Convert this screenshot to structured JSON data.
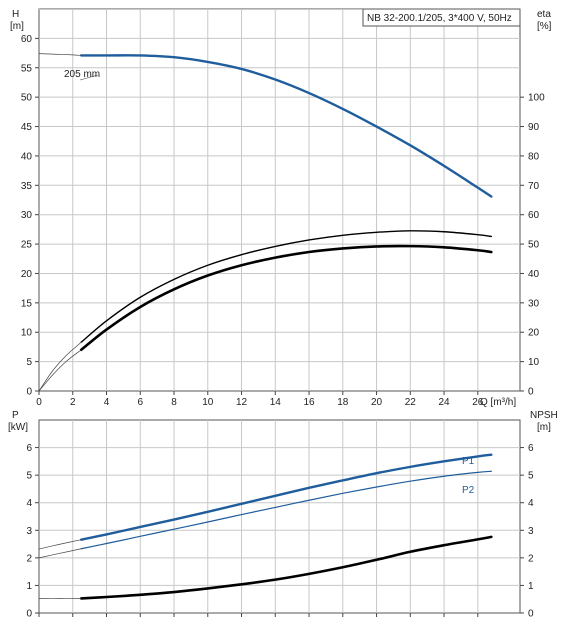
{
  "chart_data": [
    {
      "type": "line",
      "info_box": "NB 32-200.1/205, 3*400 V, 50Hz",
      "left_axis": {
        "unit_name": "H",
        "unit": "[m]",
        "ylim": [
          0,
          65
        ],
        "ticks": [
          0,
          5,
          10,
          15,
          20,
          25,
          30,
          35,
          40,
          45,
          50,
          55,
          60
        ]
      },
      "right_axis": {
        "unit_name": "eta",
        "unit": "[%]",
        "ylim": [
          0,
          130
        ],
        "ticks": [
          0,
          10,
          20,
          30,
          40,
          50,
          60,
          70,
          80,
          90,
          100
        ]
      },
      "x_axis": {
        "unit": "Q [m³/h]",
        "xlim": [
          0,
          28.5
        ],
        "ticks": [
          0,
          2,
          4,
          6,
          8,
          10,
          12,
          14,
          16,
          18,
          20,
          22,
          24,
          26
        ]
      },
      "grid": true,
      "series": [
        {
          "name": "205 mm",
          "axis": "left",
          "style": "blue-thick",
          "x": [
            2.5,
            4,
            6,
            8,
            10,
            12,
            14,
            16,
            18,
            20,
            22,
            24,
            26,
            26.8
          ],
          "y": [
            57.1,
            57.1,
            57.1,
            56.8,
            56.0,
            54.8,
            53.0,
            50.7,
            48.0,
            45.0,
            41.8,
            38.3,
            34.6,
            33.1
          ]
        },
        {
          "name": "",
          "axis": "left",
          "style": "thin-extension",
          "x": [
            0,
            1,
            2,
            2.5
          ],
          "y": [
            57.4,
            57.3,
            57.2,
            57.1
          ]
        },
        {
          "name": "",
          "axis": "right",
          "style": "black-thin",
          "x": [
            2.5,
            4,
            6,
            8,
            10,
            12,
            14,
            16,
            18,
            20,
            22,
            24,
            26,
            26.8
          ],
          "y": [
            16.6,
            23.9,
            31.9,
            38.0,
            42.8,
            46.4,
            49.2,
            51.4,
            53.0,
            54.0,
            54.5,
            54.2,
            53.2,
            52.6
          ]
        },
        {
          "name": "",
          "axis": "right",
          "style": "black-thick",
          "x": [
            2.5,
            4,
            6,
            8,
            10,
            12,
            14,
            16,
            18,
            20,
            22,
            24,
            26,
            26.8
          ],
          "y": [
            14.0,
            20.9,
            28.6,
            34.6,
            39.3,
            42.8,
            45.4,
            47.3,
            48.5,
            49.2,
            49.3,
            48.9,
            47.9,
            47.3
          ]
        },
        {
          "name": "",
          "axis": "right",
          "style": "thin-extension",
          "x": [
            0,
            0.8,
            1.6,
            2.5
          ],
          "y": [
            0,
            6.8,
            12.0,
            16.6
          ]
        },
        {
          "name": "",
          "axis": "right",
          "style": "thin-extension",
          "x": [
            0,
            0.8,
            1.6,
            2.5
          ],
          "y": [
            0,
            5.4,
            10.0,
            14.0
          ]
        }
      ]
    },
    {
      "type": "line",
      "left_axis": {
        "unit_name": "P",
        "unit": "[kW]",
        "ylim": [
          0,
          7
        ],
        "ticks": [
          0,
          1,
          2,
          3,
          4,
          5,
          6
        ]
      },
      "right_axis": {
        "unit_name": "NPSH",
        "unit": "[m]",
        "ylim": [
          0,
          7
        ],
        "ticks": [
          0,
          1,
          2,
          3,
          4,
          5,
          6
        ]
      },
      "x_axis": {
        "xlim": [
          0,
          28.5
        ],
        "ticks": [
          0,
          2,
          4,
          6,
          8,
          10,
          12,
          14,
          16,
          18,
          20,
          22,
          24,
          26
        ]
      },
      "grid": true,
      "series": [
        {
          "name": "P1",
          "axis": "left",
          "style": "blue-thick",
          "x": [
            2.5,
            4,
            6,
            8,
            10,
            12,
            14,
            16,
            18,
            20,
            22,
            24,
            26,
            26.8
          ],
          "y": [
            2.66,
            2.85,
            3.12,
            3.39,
            3.67,
            3.96,
            4.25,
            4.54,
            4.81,
            5.07,
            5.3,
            5.5,
            5.68,
            5.74
          ]
        },
        {
          "name": "P2",
          "axis": "left",
          "style": "blue-thin",
          "x": [
            2.5,
            4,
            6,
            8,
            10,
            12,
            14,
            16,
            18,
            20,
            22,
            24,
            26,
            26.8
          ],
          "y": [
            2.33,
            2.52,
            2.78,
            3.04,
            3.3,
            3.57,
            3.83,
            4.09,
            4.34,
            4.57,
            4.78,
            4.96,
            5.1,
            5.14
          ]
        },
        {
          "name": "",
          "axis": "right",
          "style": "black-thick",
          "x": [
            2.5,
            4,
            6,
            8,
            10,
            12,
            14,
            16,
            18,
            20,
            22,
            24,
            26,
            26.8
          ],
          "y": [
            0.53,
            0.58,
            0.66,
            0.76,
            0.89,
            1.04,
            1.21,
            1.42,
            1.66,
            1.93,
            2.22,
            2.46,
            2.67,
            2.76
          ]
        },
        {
          "name": "",
          "axis": "left",
          "style": "thin-extension",
          "x": [
            0,
            1.2,
            2.5
          ],
          "y": [
            2.32,
            2.49,
            2.66
          ]
        },
        {
          "name": "",
          "axis": "left",
          "style": "thin-extension",
          "x": [
            0,
            1.2,
            2.5
          ],
          "y": [
            2.0,
            2.16,
            2.33
          ]
        },
        {
          "name": "",
          "axis": "right",
          "style": "thin-extension",
          "x": [
            0,
            1.2,
            2.5
          ],
          "y": [
            0.52,
            0.52,
            0.53
          ]
        }
      ]
    }
  ],
  "colors": {
    "blue": "#1f5d9c",
    "black": "#000000",
    "thin": "#444444",
    "grid": "#c8c8c8"
  }
}
